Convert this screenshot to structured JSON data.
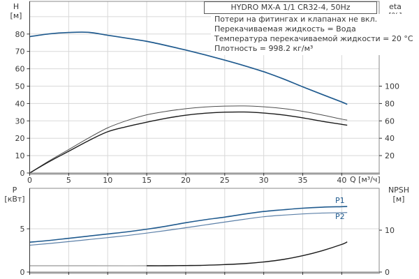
{
  "title": "HYDRO MX-A 1/1 CR32-4, 50Hz",
  "info_lines": [
    "Потери на фитингах и клапанах не вкл.",
    "Перекачиваемая жидкость = Вода",
    "Температура перекачиваемой жидкости = 20 °C",
    "Плотность = 998.2 кг/м³"
  ],
  "axis_headers": {
    "h": [
      "H",
      "[м]"
    ],
    "eta": [
      "eta",
      "[%]"
    ],
    "p": [
      "P",
      "[кВт]"
    ],
    "npsh": [
      "NPSH",
      "[м]"
    ],
    "q_label": "Q [м³/ч]"
  },
  "curve_labels": {
    "p1": "P1",
    "p2": "P2"
  },
  "colors": {
    "curve_blue": "#1f5a8e",
    "curve_blue_light": "#5c80a8",
    "curve_black": "#1a1a1a",
    "curve_dark_gray": "#4d4d4d",
    "npsh_gray_segment": "#a8a8a8",
    "grid": "#d8d8d8",
    "border": "#8a8a8a",
    "axis_dark": "#333333",
    "baseline": "#a8a8a8",
    "text": "#383838"
  },
  "chart_data": [
    {
      "type": "line",
      "title": "HYDRO MX-A 1/1 CR32-4, 50Hz",
      "x_axis": {
        "label": "Q [м³/ч]",
        "min": 0,
        "max": 44.8,
        "ticks": [
          0,
          5,
          10,
          15,
          20,
          25,
          30,
          35,
          40
        ],
        "show_tick_labels": true
      },
      "y_axis_left": {
        "label": "H [м]",
        "min": 0,
        "max": 98.8,
        "ticks": [
          0,
          10,
          20,
          30,
          40,
          50,
          60,
          70,
          80
        ],
        "gridlines": [
          10,
          20,
          30,
          40,
          50,
          60,
          70,
          80,
          90
        ]
      },
      "y_axis_right": {
        "label": "eta [%]",
        "min": 0,
        "max": 197.6,
        "ticks": [
          20,
          40,
          60,
          80,
          100
        ]
      },
      "series": [
        {
          "name": "H",
          "axis": "left",
          "color_key": "curve_blue",
          "width": 1.7,
          "points": [
            [
              0,
              78.5
            ],
            [
              2.5,
              80.1
            ],
            [
              5,
              80.9
            ],
            [
              7.5,
              81.0
            ],
            [
              10,
              79.3
            ],
            [
              12.5,
              77.6
            ],
            [
              15,
              75.8
            ],
            [
              17.5,
              73.4
            ],
            [
              20,
              70.8
            ],
            [
              22.5,
              68.0
            ],
            [
              25,
              65.0
            ],
            [
              27.5,
              61.8
            ],
            [
              30,
              58.3
            ],
            [
              32.5,
              54.2
            ],
            [
              35,
              49.6
            ],
            [
              37.5,
              45.2
            ],
            [
              40,
              40.9
            ],
            [
              40.7,
              39.5
            ]
          ]
        },
        {
          "name": "eta-pump",
          "axis": "right",
          "color_key": "curve_dark_gray",
          "width": 1.0,
          "points": [
            [
              0,
              0
            ],
            [
              2.5,
              14
            ],
            [
              5,
              27
            ],
            [
              7.5,
              40
            ],
            [
              10,
              52
            ],
            [
              12.5,
              60.5
            ],
            [
              15,
              67
            ],
            [
              17.5,
              71
            ],
            [
              20,
              74
            ],
            [
              22.5,
              76
            ],
            [
              25,
              77
            ],
            [
              27.5,
              77.2
            ],
            [
              30,
              76.2
            ],
            [
              32.5,
              74.2
            ],
            [
              35,
              71
            ],
            [
              37.5,
              66.8
            ],
            [
              40,
              62
            ],
            [
              40.7,
              61
            ]
          ]
        },
        {
          "name": "eta-pump-motor",
          "axis": "right",
          "color_key": "curve_black",
          "width": 1.4,
          "points": [
            [
              0,
              0
            ],
            [
              2.5,
              13
            ],
            [
              5,
              25
            ],
            [
              7.5,
              37
            ],
            [
              10,
              47.5
            ],
            [
              12.5,
              53.5
            ],
            [
              15,
              58.5
            ],
            [
              17.5,
              63
            ],
            [
              20,
              66.5
            ],
            [
              22.5,
              68.8
            ],
            [
              25,
              70
            ],
            [
              27.5,
              70.2
            ],
            [
              30,
              69
            ],
            [
              32.5,
              66.8
            ],
            [
              35,
              63.5
            ],
            [
              37.5,
              59.5
            ],
            [
              40,
              56
            ],
            [
              40.7,
              55
            ]
          ]
        }
      ]
    },
    {
      "type": "line",
      "x_axis": {
        "label": "Q [м³/ч]",
        "min": 0,
        "max": 44.8,
        "ticks": [
          0,
          5,
          10,
          15,
          20,
          25,
          30,
          35,
          40
        ],
        "show_tick_labels": false
      },
      "y_axis_left": {
        "label": "P [кВт]",
        "min": 0,
        "max": 9.68,
        "ticks": [
          0,
          5
        ],
        "gridlines": [
          5
        ]
      },
      "y_axis_right": {
        "label": "NPSH [м]",
        "min": 0,
        "max": 20,
        "ticks": [
          0,
          10
        ]
      },
      "series": [
        {
          "name": "P1",
          "axis": "left",
          "color_key": "curve_blue",
          "width": 1.6,
          "points": [
            [
              0,
              3.45
            ],
            [
              2.5,
              3.65
            ],
            [
              5,
              3.9
            ],
            [
              7.5,
              4.15
            ],
            [
              10,
              4.4
            ],
            [
              12.5,
              4.65
            ],
            [
              15,
              4.95
            ],
            [
              17.5,
              5.3
            ],
            [
              20,
              5.7
            ],
            [
              22.5,
              6.05
            ],
            [
              25,
              6.35
            ],
            [
              27.5,
              6.7
            ],
            [
              30,
              7.0
            ],
            [
              32.5,
              7.2
            ],
            [
              35,
              7.38
            ],
            [
              37.5,
              7.5
            ],
            [
              40,
              7.56
            ],
            [
              40.7,
              7.58
            ]
          ]
        },
        {
          "name": "P2",
          "axis": "left",
          "color_key": "curve_blue_light",
          "width": 1.2,
          "points": [
            [
              0,
              3.1
            ],
            [
              2.5,
              3.3
            ],
            [
              5,
              3.52
            ],
            [
              7.5,
              3.75
            ],
            [
              10,
              3.98
            ],
            [
              12.5,
              4.22
            ],
            [
              15,
              4.5
            ],
            [
              17.5,
              4.8
            ],
            [
              20,
              5.12
            ],
            [
              22.5,
              5.45
            ],
            [
              25,
              5.78
            ],
            [
              27.5,
              6.1
            ],
            [
              30,
              6.4
            ],
            [
              32.5,
              6.58
            ],
            [
              35,
              6.72
            ],
            [
              37.5,
              6.82
            ],
            [
              40,
              6.87
            ],
            [
              40.7,
              6.88
            ]
          ]
        },
        {
          "name": "NPSH-low-flow",
          "axis": "right",
          "color_key": "npsh_gray_segment",
          "width": 1.4,
          "points": [
            [
              0,
              1.5
            ],
            [
              8,
              1.5
            ],
            [
              15,
              1.5
            ],
            [
              22,
              1.55
            ]
          ]
        },
        {
          "name": "NPSH",
          "axis": "right",
          "color_key": "curve_black",
          "width": 1.4,
          "points": [
            [
              15,
              1.5
            ],
            [
              17.5,
              1.5
            ],
            [
              20,
              1.55
            ],
            [
              22.5,
              1.62
            ],
            [
              25,
              1.78
            ],
            [
              27.5,
              2.0
            ],
            [
              30,
              2.4
            ],
            [
              32.5,
              3.0
            ],
            [
              35,
              3.9
            ],
            [
              37.5,
              5.1
            ],
            [
              40,
              6.6
            ],
            [
              40.7,
              7.2
            ]
          ]
        }
      ]
    }
  ]
}
